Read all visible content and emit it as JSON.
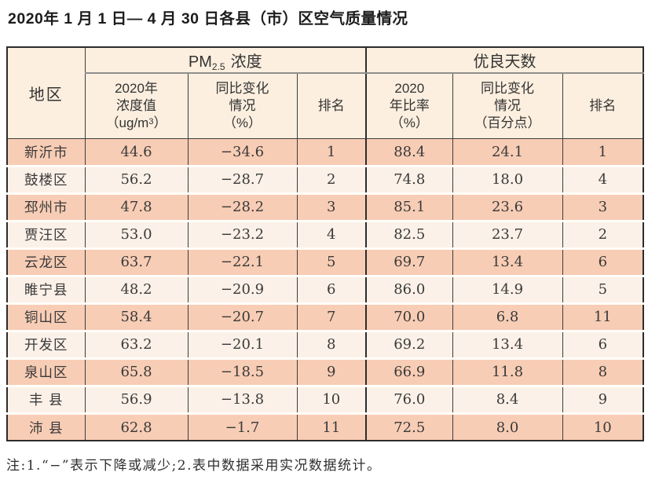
{
  "title": "2020年 1 月 1 日— 4 月 30 日各县（市）区空气质量情况",
  "note": "注:1.“−”表示下降或减少;2.表中数据采用实况数据统计。",
  "colors": {
    "row_salmon": "#f8cdb5",
    "row_light": "#fcf1e8",
    "header_cream": "#fcefdf",
    "border_dark": "#2c2c2c",
    "group_underline": "#8f8f8f"
  },
  "table": {
    "col_region": "地区",
    "group_pm": {
      "prefix": "PM",
      "sub": "2.5",
      "suffix": "浓度"
    },
    "group_good": "优良天数",
    "sub": {
      "pm_value": [
        "2020年",
        "浓度值"
      ],
      "pm_value_unit": {
        "pre": "（ug/m",
        "sup": "3",
        "post": "）"
      },
      "pm_change": [
        "同比变化",
        "情况",
        "（%）"
      ],
      "pm_rank": "排名",
      "good_rate": [
        "2020",
        "年比率",
        "（%）"
      ],
      "good_change": [
        "同比变化",
        "情况",
        "（百分点）"
      ],
      "good_rank": "排名"
    },
    "rows": [
      {
        "region": "新沂市",
        "pm_value": "44.6",
        "pm_change": "−34.6",
        "pm_rank": "1",
        "good_rate": "88.4",
        "good_change": "24.1",
        "good_rank": "1"
      },
      {
        "region": "鼓楼区",
        "pm_value": "56.2",
        "pm_change": "−28.7",
        "pm_rank": "2",
        "good_rate": "74.8",
        "good_change": "18.0",
        "good_rank": "4"
      },
      {
        "region": "邳州市",
        "pm_value": "47.8",
        "pm_change": "−28.2",
        "pm_rank": "3",
        "good_rate": "85.1",
        "good_change": "23.6",
        "good_rank": "3"
      },
      {
        "region": "贾汪区",
        "pm_value": "53.0",
        "pm_change": "−23.2",
        "pm_rank": "4",
        "good_rate": "82.5",
        "good_change": "23.7",
        "good_rank": "2"
      },
      {
        "region": "云龙区",
        "pm_value": "63.7",
        "pm_change": "−22.1",
        "pm_rank": "5",
        "good_rate": "69.7",
        "good_change": "13.4",
        "good_rank": "6"
      },
      {
        "region": "睢宁县",
        "pm_value": "48.2",
        "pm_change": "−20.9",
        "pm_rank": "6",
        "good_rate": "86.0",
        "good_change": "14.9",
        "good_rank": "5"
      },
      {
        "region": "铜山区",
        "pm_value": "58.4",
        "pm_change": "−20.7",
        "pm_rank": "7",
        "good_rate": "70.0",
        "good_change": "6.8",
        "good_rank": "11"
      },
      {
        "region": "开发区",
        "pm_value": "63.2",
        "pm_change": "−20.1",
        "pm_rank": "8",
        "good_rate": "69.2",
        "good_change": "13.4",
        "good_rank": "6"
      },
      {
        "region": "泉山区",
        "pm_value": "65.8",
        "pm_change": "−18.5",
        "pm_rank": "9",
        "good_rate": "66.9",
        "good_change": "11.8",
        "good_rank": "8"
      },
      {
        "region": "丰 县",
        "pm_value": "56.9",
        "pm_change": "−13.8",
        "pm_rank": "10",
        "good_rate": "76.0",
        "good_change": "8.4",
        "good_rank": "9"
      },
      {
        "region": "沛 县",
        "pm_value": "62.8",
        "pm_change": "−1.7",
        "pm_rank": "11",
        "good_rate": "72.5",
        "good_change": "8.0",
        "good_rank": "10"
      }
    ]
  },
  "chart_data": {
    "type": "table",
    "title": "2020年1月1日—4月30日各县（市）区空气质量情况",
    "column_groups": [
      "地区",
      "PM2.5浓度",
      "优良天数"
    ],
    "columns": [
      "地区",
      "PM2.5浓度 2020年浓度值（ug/m3）",
      "PM2.5浓度 同比变化情况（%）",
      "PM2.5浓度 排名",
      "优良天数 2020年比率（%）",
      "优良天数 同比变化情况（百分点）",
      "优良天数 排名"
    ],
    "rows": [
      [
        "新沂市",
        44.6,
        -34.6,
        1,
        88.4,
        24.1,
        1
      ],
      [
        "鼓楼区",
        56.2,
        -28.7,
        2,
        74.8,
        18.0,
        4
      ],
      [
        "邳州市",
        47.8,
        -28.2,
        3,
        85.1,
        23.6,
        3
      ],
      [
        "贾汪区",
        53.0,
        -23.2,
        4,
        82.5,
        23.7,
        2
      ],
      [
        "云龙区",
        63.7,
        -22.1,
        5,
        69.7,
        13.4,
        6
      ],
      [
        "睢宁县",
        48.2,
        -20.9,
        6,
        86.0,
        14.9,
        5
      ],
      [
        "铜山区",
        58.4,
        -20.7,
        7,
        70.0,
        6.8,
        11
      ],
      [
        "开发区",
        63.2,
        -20.1,
        8,
        69.2,
        13.4,
        6
      ],
      [
        "泉山区",
        65.8,
        -18.5,
        9,
        66.9,
        11.8,
        8
      ],
      [
        "丰县",
        56.9,
        -13.8,
        10,
        76.0,
        8.4,
        9
      ],
      [
        "沛县",
        62.8,
        -1.7,
        11,
        72.5,
        8.0,
        10
      ]
    ],
    "note": "注:1.“−”表示下降或减少;2.表中数据采用实况数据统计。"
  }
}
